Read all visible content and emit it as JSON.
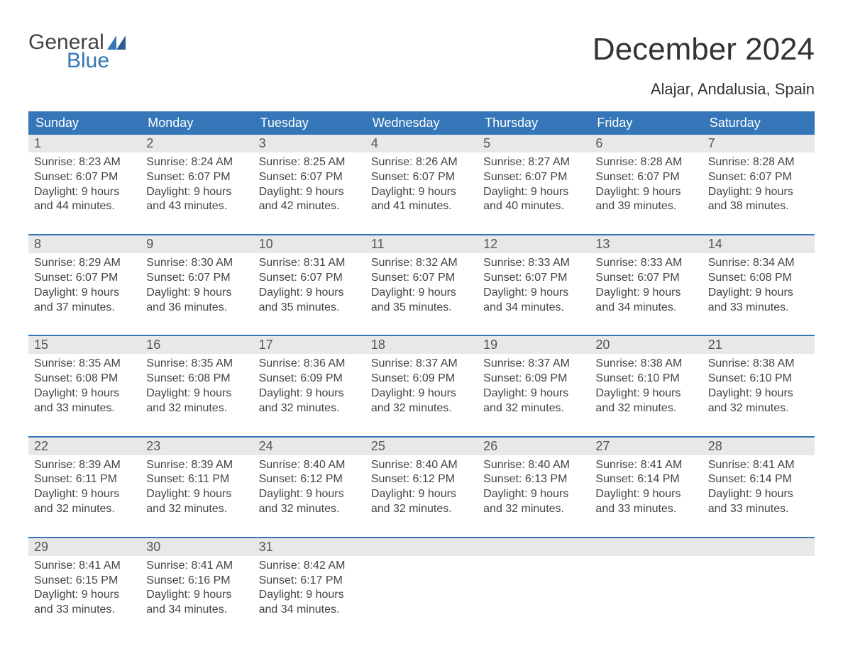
{
  "logo": {
    "text1": "General",
    "text2": "Blue"
  },
  "colors": {
    "brand_blue": "#3476b8",
    "header_text": "#333333",
    "daynum_bg": "#e8e8e8",
    "daynum_text": "#555555",
    "body_text": "#444444",
    "white": "#ffffff"
  },
  "title": "December 2024",
  "location": "Alajar, Andalusia, Spain",
  "days_of_week": [
    "Sunday",
    "Monday",
    "Tuesday",
    "Wednesday",
    "Thursday",
    "Friday",
    "Saturday"
  ],
  "weeks": [
    [
      {
        "num": "1",
        "sunrise": "8:23 AM",
        "sunset": "6:07 PM",
        "daylight": "9 hours and 44 minutes."
      },
      {
        "num": "2",
        "sunrise": "8:24 AM",
        "sunset": "6:07 PM",
        "daylight": "9 hours and 43 minutes."
      },
      {
        "num": "3",
        "sunrise": "8:25 AM",
        "sunset": "6:07 PM",
        "daylight": "9 hours and 42 minutes."
      },
      {
        "num": "4",
        "sunrise": "8:26 AM",
        "sunset": "6:07 PM",
        "daylight": "9 hours and 41 minutes."
      },
      {
        "num": "5",
        "sunrise": "8:27 AM",
        "sunset": "6:07 PM",
        "daylight": "9 hours and 40 minutes."
      },
      {
        "num": "6",
        "sunrise": "8:28 AM",
        "sunset": "6:07 PM",
        "daylight": "9 hours and 39 minutes."
      },
      {
        "num": "7",
        "sunrise": "8:28 AM",
        "sunset": "6:07 PM",
        "daylight": "9 hours and 38 minutes."
      }
    ],
    [
      {
        "num": "8",
        "sunrise": "8:29 AM",
        "sunset": "6:07 PM",
        "daylight": "9 hours and 37 minutes."
      },
      {
        "num": "9",
        "sunrise": "8:30 AM",
        "sunset": "6:07 PM",
        "daylight": "9 hours and 36 minutes."
      },
      {
        "num": "10",
        "sunrise": "8:31 AM",
        "sunset": "6:07 PM",
        "daylight": "9 hours and 35 minutes."
      },
      {
        "num": "11",
        "sunrise": "8:32 AM",
        "sunset": "6:07 PM",
        "daylight": "9 hours and 35 minutes."
      },
      {
        "num": "12",
        "sunrise": "8:33 AM",
        "sunset": "6:07 PM",
        "daylight": "9 hours and 34 minutes."
      },
      {
        "num": "13",
        "sunrise": "8:33 AM",
        "sunset": "6:07 PM",
        "daylight": "9 hours and 34 minutes."
      },
      {
        "num": "14",
        "sunrise": "8:34 AM",
        "sunset": "6:08 PM",
        "daylight": "9 hours and 33 minutes."
      }
    ],
    [
      {
        "num": "15",
        "sunrise": "8:35 AM",
        "sunset": "6:08 PM",
        "daylight": "9 hours and 33 minutes."
      },
      {
        "num": "16",
        "sunrise": "8:35 AM",
        "sunset": "6:08 PM",
        "daylight": "9 hours and 32 minutes."
      },
      {
        "num": "17",
        "sunrise": "8:36 AM",
        "sunset": "6:09 PM",
        "daylight": "9 hours and 32 minutes."
      },
      {
        "num": "18",
        "sunrise": "8:37 AM",
        "sunset": "6:09 PM",
        "daylight": "9 hours and 32 minutes."
      },
      {
        "num": "19",
        "sunrise": "8:37 AM",
        "sunset": "6:09 PM",
        "daylight": "9 hours and 32 minutes."
      },
      {
        "num": "20",
        "sunrise": "8:38 AM",
        "sunset": "6:10 PM",
        "daylight": "9 hours and 32 minutes."
      },
      {
        "num": "21",
        "sunrise": "8:38 AM",
        "sunset": "6:10 PM",
        "daylight": "9 hours and 32 minutes."
      }
    ],
    [
      {
        "num": "22",
        "sunrise": "8:39 AM",
        "sunset": "6:11 PM",
        "daylight": "9 hours and 32 minutes."
      },
      {
        "num": "23",
        "sunrise": "8:39 AM",
        "sunset": "6:11 PM",
        "daylight": "9 hours and 32 minutes."
      },
      {
        "num": "24",
        "sunrise": "8:40 AM",
        "sunset": "6:12 PM",
        "daylight": "9 hours and 32 minutes."
      },
      {
        "num": "25",
        "sunrise": "8:40 AM",
        "sunset": "6:12 PM",
        "daylight": "9 hours and 32 minutes."
      },
      {
        "num": "26",
        "sunrise": "8:40 AM",
        "sunset": "6:13 PM",
        "daylight": "9 hours and 32 minutes."
      },
      {
        "num": "27",
        "sunrise": "8:41 AM",
        "sunset": "6:14 PM",
        "daylight": "9 hours and 33 minutes."
      },
      {
        "num": "28",
        "sunrise": "8:41 AM",
        "sunset": "6:14 PM",
        "daylight": "9 hours and 33 minutes."
      }
    ],
    [
      {
        "num": "29",
        "sunrise": "8:41 AM",
        "sunset": "6:15 PM",
        "daylight": "9 hours and 33 minutes."
      },
      {
        "num": "30",
        "sunrise": "8:41 AM",
        "sunset": "6:16 PM",
        "daylight": "9 hours and 34 minutes."
      },
      {
        "num": "31",
        "sunrise": "8:42 AM",
        "sunset": "6:17 PM",
        "daylight": "9 hours and 34 minutes."
      },
      null,
      null,
      null,
      null
    ]
  ],
  "labels": {
    "sunrise": "Sunrise: ",
    "sunset": "Sunset: ",
    "daylight": "Daylight: "
  }
}
